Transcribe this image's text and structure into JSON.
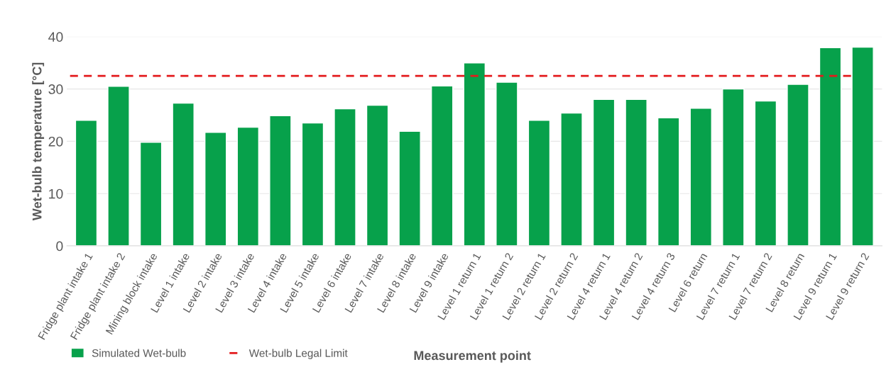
{
  "chart_data": {
    "type": "bar",
    "xlabel": "Measurement point",
    "ylabel": "Wet-bulb temperature [°C]",
    "categories": [
      "Fridge plant intake 1",
      "Fridge plant intake 2",
      "Mining block intake",
      "Level 1 intake",
      "Level 2 intake",
      "Level 3 intake",
      "Level 4 intake",
      "Level 5 intake",
      "Level 6 intake",
      "Level 7 intake",
      "Level 8 intake",
      "Level 9 intake",
      "Level 1 return 1",
      "Level 1 return 2",
      "Level 2 return 1",
      "Level 2 return 2",
      "Level 4 return 1",
      "Level 4 return 2",
      "Level 4 return 3",
      "Level 6 return",
      "Level 7 return 1",
      "Level 7 return 2",
      "Level 8 return",
      "Level 9 return 1",
      "Level 9 return 2"
    ],
    "series": [
      {
        "name": "Simulated Wet-bulb",
        "color": "#07a14b",
        "values": [
          24.0,
          30.5,
          19.8,
          27.3,
          21.7,
          22.7,
          24.9,
          23.5,
          26.2,
          26.9,
          21.9,
          30.6,
          35.0,
          31.3,
          24.0,
          25.4,
          28.0,
          28.0,
          24.5,
          26.3,
          30.0,
          27.7,
          30.9,
          37.9,
          38.0
        ]
      }
    ],
    "ref_lines": [
      {
        "axis": "y",
        "value": 32.5,
        "label": "Wet-bulb Legal Limit",
        "color": "#e31a1c",
        "line_style": "dashed"
      }
    ],
    "ylim": [
      0,
      40
    ],
    "yticks": [
      0,
      10,
      20,
      30,
      40
    ],
    "grid": "y",
    "legend": "bottom left"
  }
}
